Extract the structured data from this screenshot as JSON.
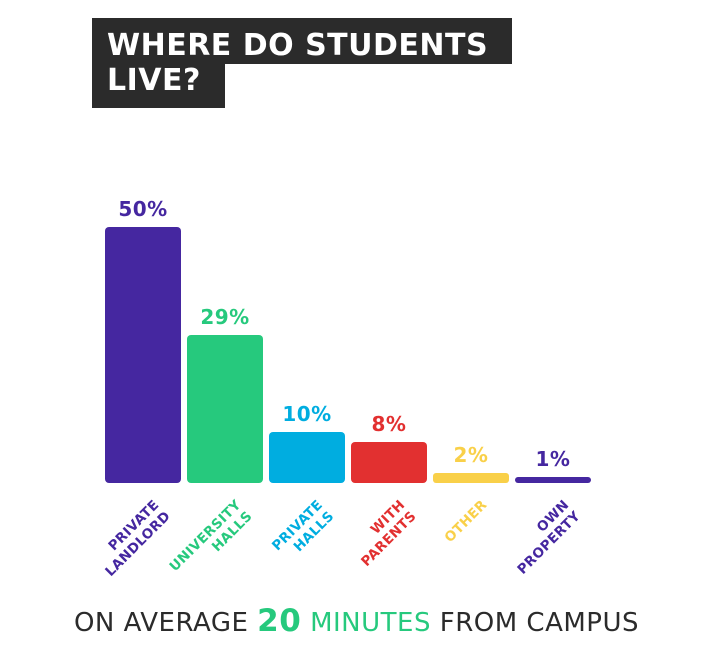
{
  "title": {
    "line1": "WHERE DO STUDENTS",
    "line2": "LIVE?",
    "bg_color": "#2b2b2b",
    "text_color": "#ffffff"
  },
  "chart_data": {
    "type": "bar",
    "title": "WHERE DO STUDENTS LIVE?",
    "categories": [
      "PRIVATE\nLANDLORD",
      "UNIVERSITY\nHALLS",
      "PRIVATE\nHALLS",
      "WITH\nPARENTS",
      "OTHER",
      "OWN\nPROPERTY"
    ],
    "values": [
      50,
      29,
      10,
      8,
      2,
      1
    ],
    "value_labels": [
      "50%",
      "29%",
      "10%",
      "8%",
      "2%",
      "1%"
    ],
    "bar_colors": [
      "#4527a0",
      "#26c97d",
      "#00ade0",
      "#e23030",
      "#f9d049",
      "#4527a0"
    ],
    "unit": "%",
    "ylim": [
      0,
      50
    ],
    "grid": false,
    "legend": false,
    "label_rotation_deg": -45,
    "annotation": "ON AVERAGE 20 MINUTES FROM CAMPUS"
  },
  "footer": {
    "prefix": "ON AVERAGE",
    "highlight_number": "20",
    "highlight_unit": "MINUTES",
    "suffix": "FROM CAMPUS",
    "highlight_color": "#26c97d",
    "text_color": "#2b2b2b"
  }
}
